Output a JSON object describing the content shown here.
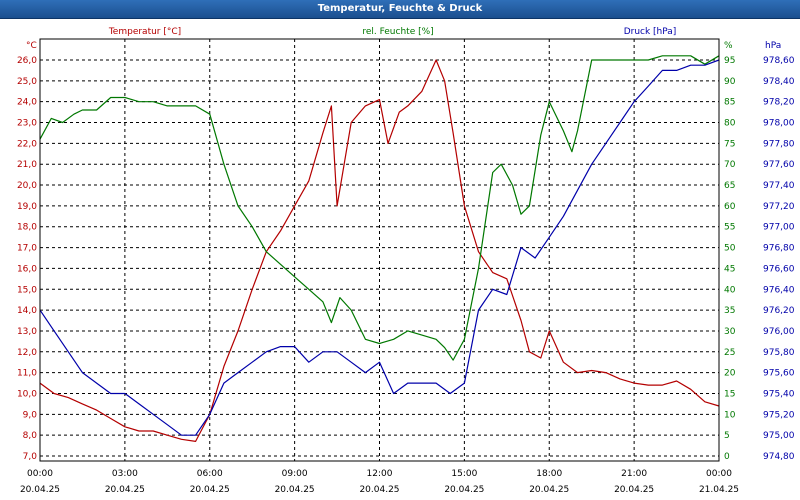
{
  "window": {
    "title": "Temperatur, Feuchte & Druck"
  },
  "colors": {
    "temperature": "#b40000",
    "humidity": "#007800",
    "pressure": "#0000aa",
    "grid": "#000000"
  },
  "chart_data": {
    "type": "line",
    "title": "Temperatur, Feuchte & Druck",
    "grid": true,
    "x_ticks": [
      {
        "time": "00:00",
        "date": "20.04.25"
      },
      {
        "time": "03:00",
        "date": "20.04.25"
      },
      {
        "time": "06:00",
        "date": "20.04.25"
      },
      {
        "time": "09:00",
        "date": "20.04.25"
      },
      {
        "time": "12:00",
        "date": "20.04.25"
      },
      {
        "time": "15:00",
        "date": "20.04.25"
      },
      {
        "time": "18:00",
        "date": "20.04.25"
      },
      {
        "time": "21:00",
        "date": "20.04.25"
      },
      {
        "time": "00:00",
        "date": "21.04.25"
      }
    ],
    "axes": {
      "temperature": {
        "label": "Temperatur [°C]",
        "unit": "°C",
        "ylim": [
          7.0,
          26.0
        ],
        "ticks": [
          "7,0",
          "8,0",
          "9,0",
          "10,0",
          "11,0",
          "12,0",
          "13,0",
          "14,0",
          "15,0",
          "16,0",
          "17,0",
          "18,0",
          "19,0",
          "20,0",
          "21,0",
          "22,0",
          "23,0",
          "24,0",
          "25,0",
          "26,0"
        ]
      },
      "humidity": {
        "label": "rel. Feuchte [%]",
        "unit": "%",
        "ylim": [
          0,
          95
        ],
        "ticks": [
          "0",
          "5",
          "10",
          "15",
          "20",
          "25",
          "30",
          "35",
          "40",
          "45",
          "50",
          "55",
          "60",
          "65",
          "70",
          "75",
          "80",
          "85",
          "90",
          "95"
        ]
      },
      "pressure": {
        "label": "Druck [hPa]",
        "unit": "hPa",
        "ylim": [
          974.8,
          978.6
        ],
        "ticks": [
          "974,80",
          "975,00",
          "975,20",
          "975,40",
          "975,60",
          "975,80",
          "976,00",
          "976,20",
          "976,40",
          "976,60",
          "976,80",
          "977,00",
          "977,20",
          "977,40",
          "977,60",
          "977,80",
          "978,00",
          "978,20",
          "978,40",
          "978,60"
        ]
      }
    },
    "series": [
      {
        "name": "Temperatur [°C]",
        "axis": "temperature",
        "x": [
          0,
          0.5,
          1,
          1.5,
          2,
          2.5,
          3,
          3.5,
          4,
          4.5,
          5,
          5.5,
          6,
          6.5,
          7,
          7.5,
          8,
          8.5,
          9,
          9.5,
          10,
          10.3,
          10.5,
          11,
          11.5,
          12,
          12.3,
          12.7,
          13,
          13.5,
          14,
          14.3,
          14.6,
          15,
          15.5,
          16,
          16.5,
          17,
          17.3,
          17.7,
          18,
          18.5,
          19,
          19.5,
          20,
          20.5,
          21,
          21.5,
          22,
          22.5,
          23,
          23.5,
          24
        ],
        "values": [
          10.5,
          10.0,
          9.8,
          9.5,
          9.2,
          8.8,
          8.4,
          8.2,
          8.2,
          8.0,
          7.8,
          7.7,
          9.0,
          11.3,
          13.0,
          15.0,
          16.8,
          17.8,
          19.0,
          20.2,
          22.5,
          23.8,
          19.0,
          23.0,
          23.8,
          24.1,
          22.0,
          23.5,
          23.8,
          24.5,
          26.0,
          25.0,
          22.5,
          19.0,
          16.8,
          15.8,
          15.5,
          13.5,
          12.0,
          11.7,
          13.0,
          11.5,
          11.0,
          11.1,
          11.0,
          10.7,
          10.5,
          10.4,
          10.4,
          10.6,
          10.2,
          9.6,
          9.4
        ]
      },
      {
        "name": "rel. Feuchte [%]",
        "axis": "humidity",
        "x": [
          0,
          0.4,
          0.8,
          1.2,
          1.5,
          2,
          2.5,
          3,
          3.5,
          4,
          4.5,
          5,
          5.5,
          6,
          6.5,
          7,
          7.5,
          8,
          8.5,
          9,
          9.5,
          10,
          10.3,
          10.6,
          11,
          11.5,
          12,
          12.5,
          13,
          13.5,
          14,
          14.3,
          14.6,
          15,
          15.5,
          16,
          16.3,
          16.7,
          17,
          17.3,
          17.7,
          18,
          18.5,
          18.8,
          19,
          19.5,
          20,
          20.5,
          21,
          21.5,
          22,
          22.5,
          23,
          23.5,
          24
        ],
        "values": [
          76,
          81,
          80,
          82,
          83,
          83,
          86,
          86,
          85,
          85,
          84,
          84,
          84,
          82,
          70,
          60,
          55,
          49,
          46,
          43,
          40,
          37,
          32,
          38,
          35,
          28,
          27,
          28,
          30,
          29,
          28,
          26,
          23,
          28,
          45,
          68,
          70,
          65,
          58,
          60,
          77,
          85,
          78,
          73,
          78,
          95,
          95,
          95,
          95,
          95,
          96,
          96,
          96,
          94,
          96
        ]
      },
      {
        "name": "Druck [hPa]",
        "axis": "pressure",
        "x": [
          0,
          0.5,
          1,
          1.5,
          2,
          2.5,
          3,
          3.5,
          4,
          4.5,
          5,
          5.5,
          6,
          6.5,
          7,
          7.5,
          8,
          8.5,
          9,
          9.5,
          10,
          10.5,
          11,
          11.5,
          12,
          12.5,
          13,
          13.5,
          14,
          14.5,
          15,
          15.5,
          16,
          16.5,
          17,
          17.5,
          18,
          18.5,
          19,
          19.5,
          20,
          20.5,
          21,
          21.5,
          22,
          22.5,
          23,
          23.5,
          24
        ],
        "values": [
          976.2,
          976.0,
          975.8,
          975.6,
          975.5,
          975.4,
          975.4,
          975.3,
          975.2,
          975.1,
          975.0,
          975.0,
          975.2,
          975.5,
          975.6,
          975.7,
          975.8,
          975.85,
          975.85,
          975.7,
          975.8,
          975.8,
          975.7,
          975.6,
          975.7,
          975.4,
          975.5,
          975.5,
          975.5,
          975.4,
          975.5,
          976.2,
          976.4,
          976.35,
          976.8,
          976.7,
          976.9,
          977.1,
          977.35,
          977.6,
          977.8,
          978.0,
          978.2,
          978.35,
          978.5,
          978.5,
          978.55,
          978.55,
          978.6
        ]
      }
    ]
  }
}
